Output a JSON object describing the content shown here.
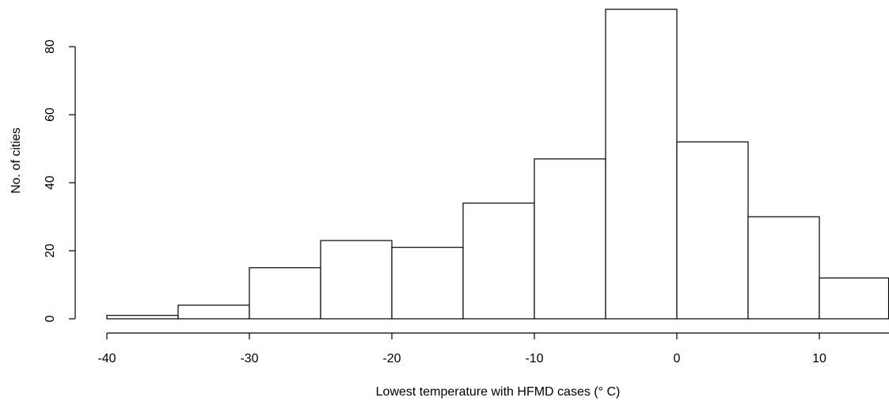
{
  "chart_data": {
    "type": "bar",
    "title": "",
    "xlabel": "Lowest temperature with HFMD cases (° C)",
    "ylabel": "No. of cities",
    "bins": [
      {
        "x0": -40,
        "x1": -35,
        "count": 1
      },
      {
        "x0": -35,
        "x1": -30,
        "count": 4
      },
      {
        "x0": -30,
        "x1": -25,
        "count": 15
      },
      {
        "x0": -25,
        "x1": -20,
        "count": 23
      },
      {
        "x0": -20,
        "x1": -15,
        "count": 21
      },
      {
        "x0": -15,
        "x1": -10,
        "count": 34
      },
      {
        "x0": -10,
        "x1": -5,
        "count": 47
      },
      {
        "x0": -5,
        "x1": 0,
        "count": 91
      },
      {
        "x0": 0,
        "x1": 5,
        "count": 52
      },
      {
        "x0": 5,
        "x1": 10,
        "count": 30
      },
      {
        "x0": 10,
        "x1": 15,
        "count": 12
      }
    ],
    "xlim": [
      -40,
      15
    ],
    "ylim": [
      0,
      92
    ],
    "xticks": [
      -40,
      -30,
      -20,
      -10,
      0,
      10
    ],
    "xtick_labels": [
      "-40",
      "-30",
      "-20",
      "-10",
      "0",
      "10"
    ],
    "yticks": [
      0,
      20,
      40,
      60,
      80
    ],
    "ytick_labels": [
      "0",
      "20",
      "40",
      "60",
      "80"
    ],
    "grid": false,
    "bar_fill": "#ffffff",
    "bar_stroke": "#000000"
  }
}
